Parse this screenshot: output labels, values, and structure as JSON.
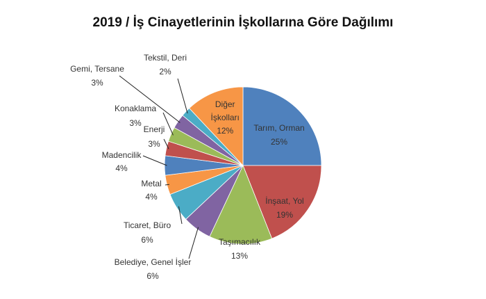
{
  "chart_data": {
    "type": "pie",
    "title": "2019 / İş Cinayetlerinin İşkollarına Göre Dağılımı",
    "categories": [
      "Tarım, Orman",
      "İnşaat, Yol",
      "Taşımacılık",
      "Belediye, Genel İşler",
      "Ticaret, Büro",
      "Metal",
      "Madencilik",
      "Enerji",
      "Konaklama",
      "Gemi, Tersane",
      "Tekstil, Deri",
      "Diğer İşkolları"
    ],
    "values": [
      25,
      19,
      13,
      6,
      6,
      4,
      4,
      3,
      3,
      3,
      2,
      12
    ],
    "value_labels": [
      "25%",
      "19%",
      "13%",
      "6%",
      "6%",
      "4%",
      "4%",
      "3%",
      "3%",
      "3%",
      "2%",
      "12%"
    ],
    "colors": [
      "#4f81bd",
      "#c0504d",
      "#9bbb59",
      "#8064a2",
      "#4bacc6",
      "#f79646",
      "#4f81bd",
      "#c0504d",
      "#9bbb59",
      "#8064a2",
      "#4bacc6",
      "#f79646"
    ]
  }
}
